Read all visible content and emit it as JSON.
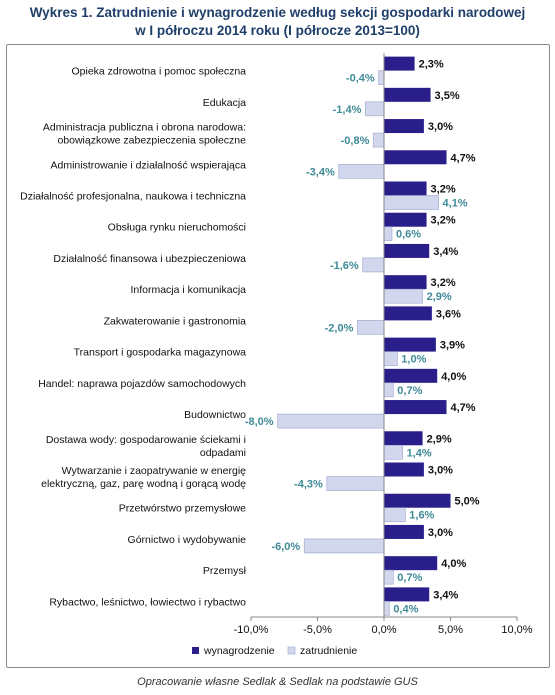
{
  "title_line1": "Wykres 1. Zatrudnienie i wynagrodzenie według sekcji gospodarki narodowej",
  "title_line2": "w I półroczu 2014 roku (I półrocze 2013=100)",
  "source": "Opracowanie własne Sedlak & Sedlak na podstawie GUS",
  "colors": {
    "wynagrodzenie": "#2a1f8a",
    "zatrudnienie": "#d2d7ee",
    "label_positive": "#111111",
    "label_negative": "#3f8a96"
  },
  "chart_data": {
    "type": "bar",
    "orientation": "horizontal",
    "categories": [
      "Opieka zdrowotna i pomoc społeczna",
      "Edukacja",
      "Administracja publiczna i obrona narodowa: obowiązkowe zabezpieczenia społeczne",
      "Administrowanie i działalność wspierająca",
      "Działalność profesjonalna, naukowa i techniczna",
      "Obsługa rynku nieruchomości",
      "Działalność finansowa i ubezpieczeniowa",
      "Informacja i komunikacja",
      "Zakwaterowanie i gastronomia",
      "Transport i gospodarka magazynowa",
      "Handel: naprawa pojazdów samochodowych",
      "Budownictwo",
      "Dostawa wody: gospodarowanie ściekami i odpadami",
      "Wytwarzanie i zaopatrywanie w energię elektryczną, gaz, parę wodną i gorącą wodę",
      "Przetwórstwo przemysłowe",
      "Górnictwo i wydobywanie",
      "Przemysł",
      "Rybactwo, leśnictwo, łowiectwo i rybactwo"
    ],
    "category_lines": [
      [
        "Opieka zdrowotna i pomoc społeczna"
      ],
      [
        "Edukacja"
      ],
      [
        "Administracja publiczna i obrona narodowa:",
        "obowiązkowe zabezpieczenia społeczne"
      ],
      [
        "Administrowanie i działalność wspierająca"
      ],
      [
        "Działalność profesjonalna, naukowa i techniczna"
      ],
      [
        "Obsługa rynku nieruchomości"
      ],
      [
        "Działalność finansowa i ubezpieczeniowa"
      ],
      [
        "Informacja i komunikacja"
      ],
      [
        "Zakwaterowanie i gastronomia"
      ],
      [
        "Transport i gospodarka magazynowa"
      ],
      [
        "Handel: naprawa pojazdów samochodowych"
      ],
      [
        "Budownictwo"
      ],
      [
        "Dostawa wody: gospodarowanie ściekami i",
        "odpadami"
      ],
      [
        "Wytwarzanie i zaopatrywanie w energię",
        "elektryczną, gaz, parę wodną i gorącą wodę"
      ],
      [
        "Przetwórstwo przemysłowe"
      ],
      [
        "Górnictwo i wydobywanie"
      ],
      [
        "Przemysł"
      ],
      [
        "Rybactwo, leśnictwo, łowiectwo i rybactwo"
      ]
    ],
    "series": [
      {
        "name": "wynagrodzenie",
        "values": [
          2.3,
          3.5,
          3.0,
          4.7,
          3.2,
          3.2,
          3.4,
          3.2,
          3.6,
          3.9,
          4.0,
          4.7,
          2.9,
          3.0,
          5.0,
          3.0,
          4.0,
          3.4
        ],
        "labels": [
          "2,3%",
          "3,5%",
          "3,0%",
          "4,7%",
          "3,2%",
          "3,2%",
          "3,4%",
          "3,2%",
          "3,6%",
          "3,9%",
          "4,0%",
          "4,7%",
          "2,9%",
          "3,0%",
          "5,0%",
          "3,0%",
          "4,0%",
          "3,4%"
        ]
      },
      {
        "name": "zatrudnienie",
        "values": [
          -0.4,
          -1.4,
          -0.8,
          -3.4,
          4.1,
          0.6,
          -1.6,
          2.9,
          -2.0,
          1.0,
          0.7,
          -8.0,
          1.4,
          -4.3,
          1.6,
          -6.0,
          0.7,
          0.4
        ],
        "labels": [
          "-0,4%",
          "-1,4%",
          "-0,8%",
          "-3,4%",
          "4,1%",
          "0,6%",
          "-1,6%",
          "2,9%",
          "-2,0%",
          "1,0%",
          "0,7%",
          "-8,0%",
          "1,4%",
          "-4,3%",
          "1,6%",
          "-6,0%",
          "0,7%",
          "0,4%"
        ]
      }
    ],
    "xlim": [
      -10,
      10
    ],
    "xticks": [
      -10,
      -5,
      0,
      5,
      10
    ],
    "xtick_labels": [
      "-10,0%",
      "-5,0%",
      "0,0%",
      "5,0%",
      "10,0%"
    ],
    "grid": false,
    "legend_position": "bottom"
  }
}
